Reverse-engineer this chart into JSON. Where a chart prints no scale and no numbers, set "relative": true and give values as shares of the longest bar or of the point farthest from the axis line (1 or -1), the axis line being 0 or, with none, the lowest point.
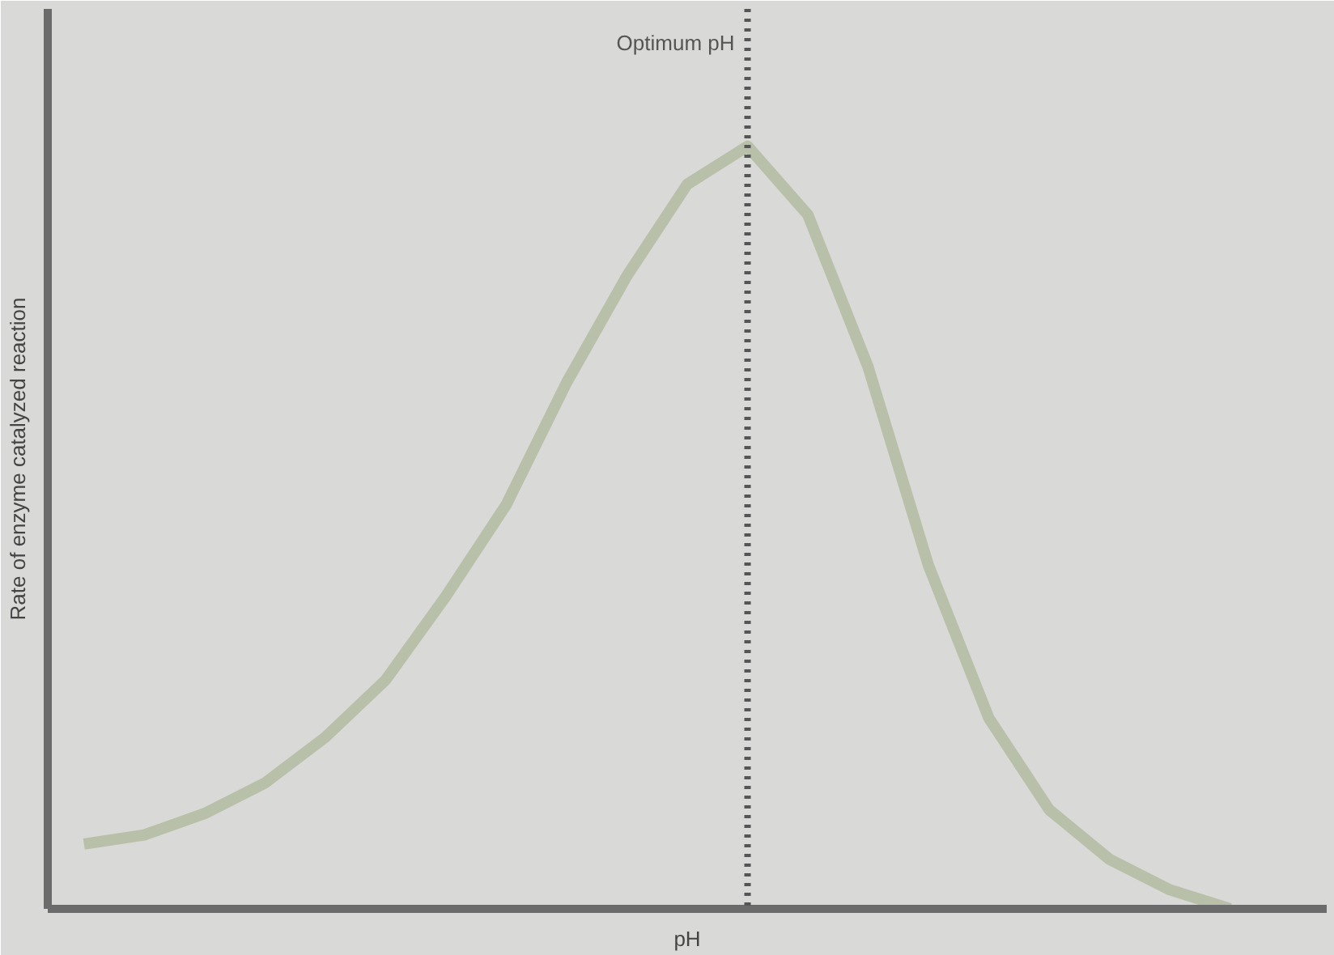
{
  "chart_data": {
    "type": "line",
    "relative": true,
    "xlabel": "pH",
    "ylabel": "Rate of enzyme catalyzed reaction",
    "categories": [
      null,
      null,
      null,
      null,
      null,
      null,
      null,
      null,
      null,
      null,
      null,
      null,
      null,
      null,
      null,
      null,
      null,
      null,
      null,
      null
    ],
    "series": [
      {
        "color": "#b9c0a9",
        "values": [
          0.085,
          0.097,
          0.125,
          0.165,
          0.225,
          0.3,
          0.41,
          0.53,
          0.69,
          0.83,
          0.95,
          1.0,
          0.91,
          0.71,
          0.45,
          0.25,
          0.13,
          0.065,
          0.025,
          0
        ]
      }
    ],
    "annotations": [
      "Optimum pH"
    ],
    "grid": false,
    "tick_labels": false,
    "marker": "none",
    "line_style": "solid"
  }
}
